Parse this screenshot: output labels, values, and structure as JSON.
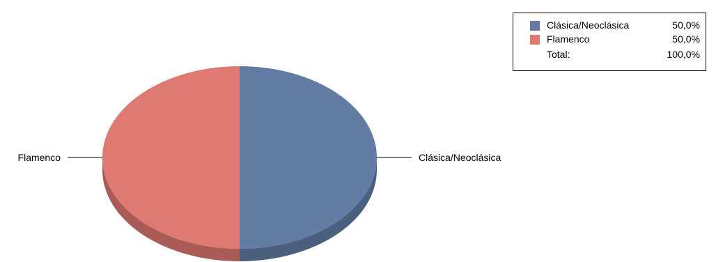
{
  "chart_data": {
    "type": "pie",
    "style": "3d",
    "categories": [
      "Clásica/Neoclásica",
      "Flamenco"
    ],
    "values": [
      50.0,
      50.0
    ],
    "value_labels": [
      "50,0%",
      "50,0%"
    ],
    "colors": [
      "#637ca3",
      "#df7a72"
    ],
    "side_colors": [
      "#4b5f7f",
      "#ab5b55"
    ],
    "title": "",
    "legend": {
      "position": "top-right",
      "total_label": "Total:",
      "total_value": "100,0%"
    }
  }
}
